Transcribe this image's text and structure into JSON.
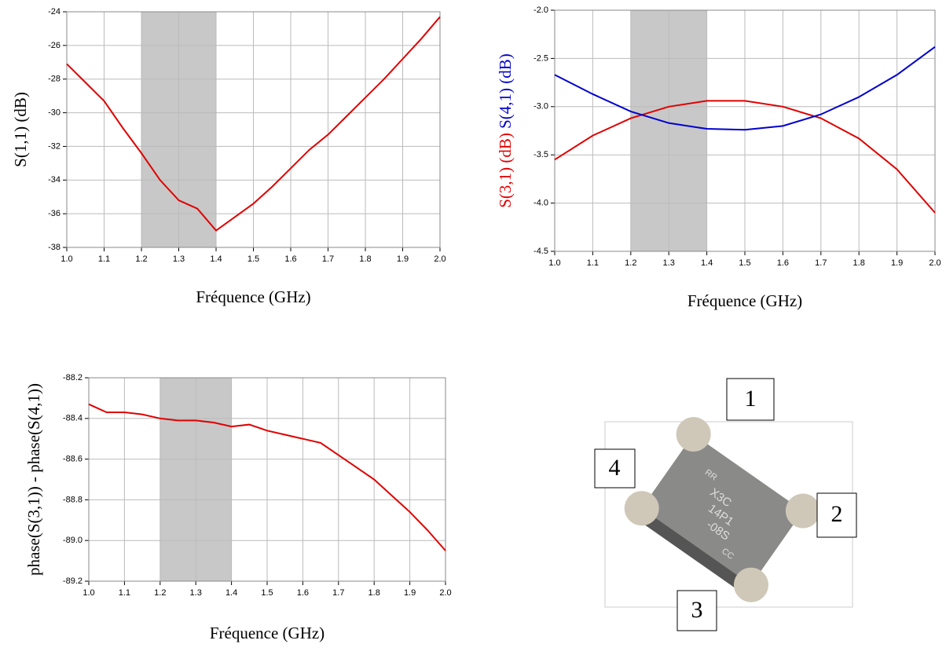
{
  "chart_data": [
    {
      "type": "line",
      "xlabel": "Fréquence (GHz)",
      "ylabel": "S(1,1) (dB)",
      "color": "#e00000",
      "x": [
        1.0,
        1.05,
        1.1,
        1.15,
        1.2,
        1.25,
        1.3,
        1.35,
        1.4,
        1.45,
        1.5,
        1.55,
        1.6,
        1.65,
        1.7,
        1.75,
        1.8,
        1.85,
        1.9,
        1.95,
        2.0
      ],
      "values": [
        -27.1,
        -28.2,
        -29.3,
        -30.9,
        -32.4,
        -34.0,
        -35.2,
        -35.7,
        -37.0,
        -36.2,
        -35.4,
        -34.4,
        -33.3,
        -32.2,
        -31.3,
        -30.2,
        -29.1,
        -28.0,
        -26.8,
        -25.6,
        -24.3
      ],
      "xlim": [
        1.0,
        2.0
      ],
      "ylim": [
        -38,
        -24
      ],
      "xticks": [
        {
          "value": 1.0,
          "label": "1.0"
        },
        1.1,
        1.2,
        1.3,
        1.4,
        1.5,
        1.6,
        1.7,
        1.8,
        1.9,
        {
          "value": 2.0,
          "label": "2.0"
        }
      ],
      "yticks": [
        -38,
        -36,
        -34,
        -32,
        -30,
        -28,
        -26,
        -24
      ],
      "highlight": [
        1.2,
        1.4
      ],
      "grid": true
    },
    {
      "type": "line",
      "xlabel": "Fréquence (GHz)",
      "x": [
        1.0,
        1.1,
        1.2,
        1.3,
        1.4,
        1.5,
        1.6,
        1.7,
        1.8,
        1.9,
        2.0
      ],
      "series": [
        {
          "name": "S(3,1) (dB)",
          "color": "#e00000",
          "values": [
            -3.55,
            -3.3,
            -3.12,
            -3.0,
            -2.94,
            -2.94,
            -3.0,
            -3.12,
            -3.33,
            -3.65,
            -4.1
          ]
        },
        {
          "name": "S(4,1) (dB)",
          "color": "#0000d0",
          "values": [
            -2.67,
            -2.87,
            -3.05,
            -3.17,
            -3.23,
            -3.24,
            -3.2,
            -3.08,
            -2.9,
            -2.67,
            -2.38
          ]
        }
      ],
      "xlim": [
        1.0,
        2.0
      ],
      "ylim": [
        -4.5,
        -2.0
      ],
      "xticks": [
        {
          "value": 1.0,
          "label": "1.0"
        },
        1.1,
        1.2,
        1.3,
        1.4,
        1.5,
        1.6,
        1.7,
        1.8,
        1.9,
        {
          "value": 2.0,
          "label": "2.0"
        }
      ],
      "yticks": [
        -4.5,
        {
          "value": -4.0,
          "label": "-4.0"
        },
        -3.5,
        {
          "value": -3.0,
          "label": "-3.0"
        },
        -2.5,
        {
          "value": -2.0,
          "label": "-2.0"
        }
      ],
      "highlight": [
        1.2,
        1.4
      ],
      "grid": true
    },
    {
      "type": "line",
      "xlabel": "Fréquence (GHz)",
      "ylabel": "phase(S(3,1)) - phase(S(4,1))",
      "color": "#e00000",
      "x": [
        1.0,
        1.05,
        1.1,
        1.15,
        1.2,
        1.25,
        1.3,
        1.35,
        1.4,
        1.45,
        1.5,
        1.55,
        1.6,
        1.65,
        1.7,
        1.75,
        1.8,
        1.85,
        1.9,
        1.95,
        2.0
      ],
      "values": [
        -88.33,
        -88.37,
        -88.37,
        -88.38,
        -88.4,
        -88.41,
        -88.41,
        -88.42,
        -88.44,
        -88.43,
        -88.46,
        -88.48,
        -88.5,
        -88.52,
        -88.58,
        -88.64,
        -88.7,
        -88.78,
        -88.86,
        -88.95,
        -89.05
      ],
      "xlim": [
        1.0,
        2.0
      ],
      "ylim": [
        -89.2,
        -88.2
      ],
      "xticks": [
        {
          "value": 1.0,
          "label": "1.0"
        },
        1.1,
        1.2,
        1.3,
        1.4,
        1.5,
        1.6,
        1.7,
        1.8,
        1.9,
        {
          "value": 2.0,
          "label": "2.0"
        }
      ],
      "yticks": [
        -89.2,
        {
          "value": -89.0,
          "label": "-89.0"
        },
        -88.8,
        -88.6,
        -88.4,
        -88.2
      ],
      "highlight": [
        1.2,
        1.4
      ],
      "grid": true
    }
  ],
  "component": {
    "ports": [
      "1",
      "2",
      "3",
      "4"
    ],
    "marking": [
      "RR",
      "X3C",
      "14P1",
      "-08S",
      "CC"
    ]
  }
}
